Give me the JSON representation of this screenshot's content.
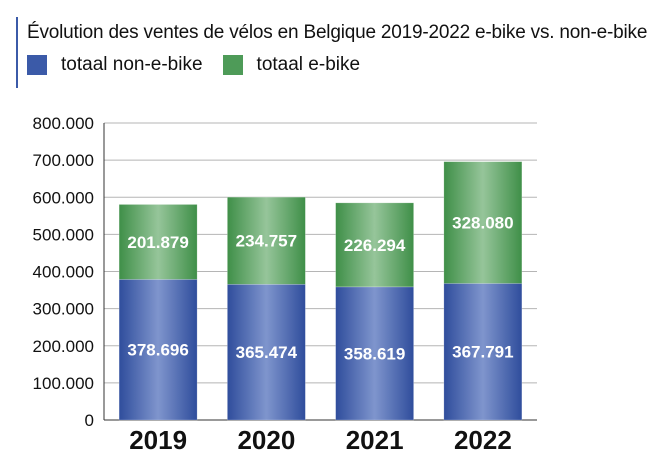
{
  "chart_data": {
    "type": "bar",
    "stacked": true,
    "title": "Évolution des ventes de vélos en Belgique 2019-2022 e-bike vs. non-e-bike",
    "categories": [
      "2019",
      "2020",
      "2021",
      "2022"
    ],
    "series": [
      {
        "name": "totaal non-e-bike",
        "values": [
          378696,
          365474,
          358619,
          367791
        ],
        "labels": [
          "378.696",
          "365.474",
          "358.619",
          "367.791"
        ],
        "color": "#3b5aa8"
      },
      {
        "name": "totaal e-bike",
        "values": [
          201879,
          234757,
          226294,
          328080
        ],
        "labels": [
          "201.879",
          "234.757",
          "226.294",
          "328.080"
        ],
        "color": "#4e9b58"
      }
    ],
    "ylim": [
      0,
      800000
    ],
    "yticks": [
      0,
      100000,
      200000,
      300000,
      400000,
      500000,
      600000,
      700000,
      800000
    ],
    "ytick_labels": [
      "0",
      "100.000",
      "200.000",
      "300.000",
      "400.000",
      "500.000",
      "600.000",
      "700.000",
      "800.000"
    ],
    "grid": true,
    "legend_position": "top-left"
  }
}
